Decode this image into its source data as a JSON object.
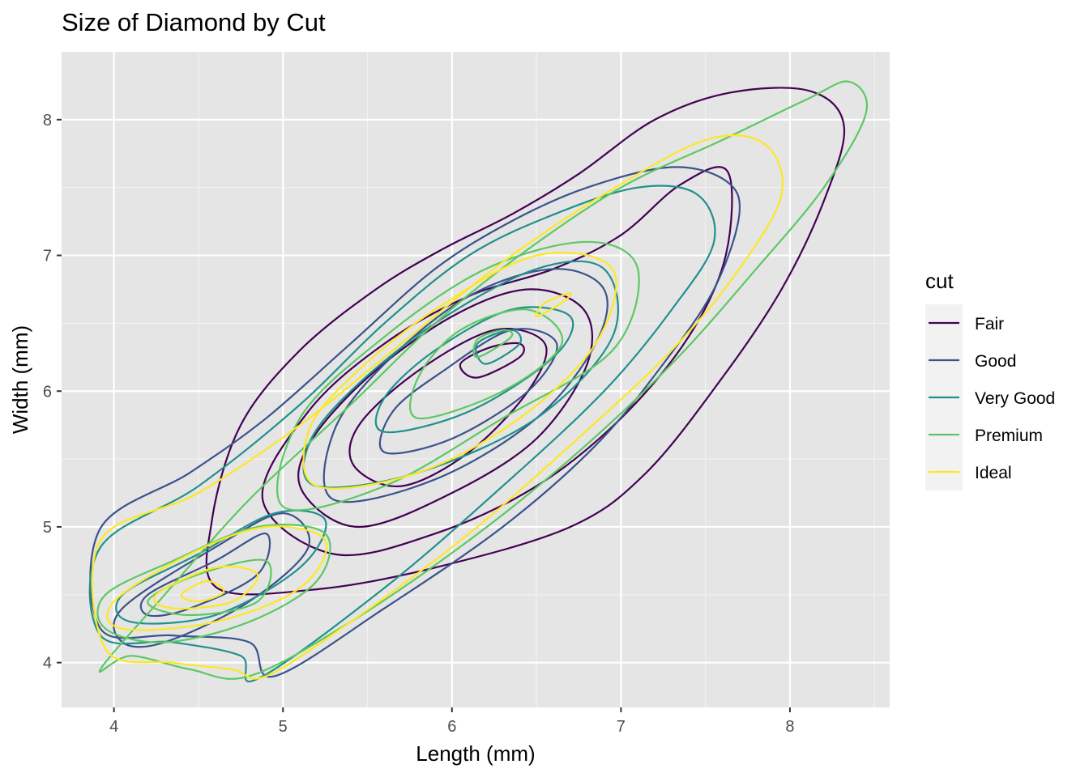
{
  "chart_data": {
    "type": "contour",
    "title": "Size of Diamond by Cut",
    "xlabel": "Length (mm)",
    "ylabel": "Width (mm)",
    "xlim": [
      3.69,
      8.59
    ],
    "ylim": [
      3.67,
      8.5
    ],
    "x_ticks": [
      4,
      5,
      6,
      7,
      8
    ],
    "y_ticks": [
      4,
      5,
      6,
      7,
      8
    ],
    "background": "#e5e5e5",
    "grid": true,
    "legend": {
      "title": "cut",
      "placement": "right"
    },
    "series": [
      {
        "name": "Fair",
        "color": "#440154",
        "contours": [
          [
            [
              4.61,
              4.55
            ],
            [
              5.2,
              4.54
            ],
            [
              5.9,
              4.7
            ],
            [
              6.7,
              5.0
            ],
            [
              7.15,
              5.4
            ],
            [
              7.6,
              6.1
            ],
            [
              7.95,
              6.75
            ],
            [
              8.2,
              7.4
            ],
            [
              8.32,
              7.95
            ],
            [
              8.12,
              8.21
            ],
            [
              7.65,
              8.2
            ],
            [
              7.2,
              8.0
            ],
            [
              6.75,
              7.6
            ],
            [
              6.35,
              7.3
            ],
            [
              5.95,
              7.05
            ],
            [
              5.55,
              6.75
            ],
            [
              5.1,
              6.3
            ],
            [
              4.75,
              5.75
            ],
            [
              4.58,
              5.05
            ]
          ],
          [
            [
              5.3,
              4.8
            ],
            [
              5.9,
              4.95
            ],
            [
              6.5,
              5.3
            ],
            [
              7.0,
              5.8
            ],
            [
              7.4,
              6.4
            ],
            [
              7.62,
              7.0
            ],
            [
              7.63,
              7.62
            ],
            [
              7.35,
              7.52
            ],
            [
              7.0,
              7.15
            ],
            [
              6.6,
              6.9
            ],
            [
              6.1,
              6.7
            ],
            [
              5.6,
              6.35
            ],
            [
              5.15,
              5.85
            ],
            [
              4.88,
              5.2
            ]
          ],
          [
            [
              5.45,
              5.0
            ],
            [
              6.0,
              5.25
            ],
            [
              6.5,
              5.65
            ],
            [
              6.8,
              6.2
            ],
            [
              6.78,
              6.6
            ],
            [
              6.45,
              6.75
            ],
            [
              6.0,
              6.55
            ],
            [
              5.5,
              6.1
            ],
            [
              5.15,
              5.6
            ],
            [
              5.12,
              5.25
            ]
          ],
          [
            [
              5.7,
              5.3
            ],
            [
              6.1,
              5.55
            ],
            [
              6.45,
              6.0
            ],
            [
              6.55,
              6.35
            ],
            [
              6.25,
              6.45
            ],
            [
              5.8,
              6.15
            ],
            [
              5.45,
              5.75
            ],
            [
              5.42,
              5.45
            ]
          ],
          [
            [
              6.15,
              6.1
            ],
            [
              6.4,
              6.25
            ],
            [
              6.4,
              6.35
            ],
            [
              6.22,
              6.32
            ],
            [
              6.05,
              6.2
            ]
          ]
        ]
      },
      {
        "name": "Good",
        "color": "#3b528b",
        "contours": [
          [
            [
              3.92,
              4.99
            ],
            [
              4.45,
              5.4
            ],
            [
              4.9,
              5.8
            ],
            [
              5.4,
              6.35
            ],
            [
              5.9,
              6.9
            ],
            [
              6.35,
              7.25
            ],
            [
              6.8,
              7.5
            ],
            [
              7.3,
              7.65
            ],
            [
              7.62,
              7.55
            ],
            [
              7.7,
              7.3
            ],
            [
              7.55,
              6.75
            ],
            [
              7.25,
              6.2
            ],
            [
              6.85,
              5.6
            ],
            [
              6.3,
              5.0
            ],
            [
              5.6,
              4.4
            ],
            [
              4.95,
              3.9
            ],
            [
              4.8,
              4.15
            ],
            [
              4.35,
              4.2
            ],
            [
              3.92,
              4.25
            ]
          ],
          [
            [
              4.05,
              4.4
            ],
            [
              4.6,
              4.85
            ],
            [
              5.0,
              5.1
            ],
            [
              5.15,
              4.85
            ],
            [
              4.8,
              4.45
            ],
            [
              4.3,
              4.15
            ],
            [
              4.05,
              4.15
            ]
          ],
          [
            [
              4.2,
              4.5
            ],
            [
              4.6,
              4.75
            ],
            [
              4.9,
              4.95
            ],
            [
              4.85,
              4.65
            ],
            [
              4.45,
              4.4
            ],
            [
              4.2,
              4.35
            ]
          ],
          [
            [
              5.3,
              5.2
            ],
            [
              5.9,
              5.35
            ],
            [
              6.5,
              5.8
            ],
            [
              6.85,
              6.35
            ],
            [
              6.9,
              6.75
            ],
            [
              6.6,
              6.9
            ],
            [
              6.1,
              6.7
            ],
            [
              5.6,
              6.2
            ],
            [
              5.3,
              5.7
            ]
          ],
          [
            [
              5.6,
              5.55
            ],
            [
              6.0,
              5.65
            ],
            [
              6.45,
              6.0
            ],
            [
              6.62,
              6.35
            ],
            [
              6.35,
              6.45
            ],
            [
              5.95,
              6.15
            ],
            [
              5.65,
              5.85
            ]
          ]
        ]
      },
      {
        "name": "Very Good",
        "color": "#21908c",
        "contours": [
          [
            [
              3.92,
              4.85
            ],
            [
              4.5,
              5.3
            ],
            [
              5.1,
              5.9
            ],
            [
              5.6,
              6.5
            ],
            [
              6.1,
              7.0
            ],
            [
              6.6,
              7.3
            ],
            [
              7.1,
              7.5
            ],
            [
              7.45,
              7.45
            ],
            [
              7.55,
              7.1
            ],
            [
              7.3,
              6.6
            ],
            [
              6.9,
              6.0
            ],
            [
              6.3,
              5.3
            ],
            [
              5.6,
              4.55
            ],
            [
              4.85,
              3.88
            ],
            [
              4.75,
              4.05
            ],
            [
              4.35,
              4.15
            ],
            [
              3.92,
              4.2
            ]
          ],
          [
            [
              4.05,
              4.5
            ],
            [
              4.5,
              4.8
            ],
            [
              4.95,
              5.1
            ],
            [
              5.25,
              5.05
            ],
            [
              5.1,
              4.7
            ],
            [
              4.6,
              4.35
            ],
            [
              4.1,
              4.3
            ]
          ],
          [
            [
              5.2,
              5.3
            ],
            [
              5.8,
              5.4
            ],
            [
              6.5,
              5.8
            ],
            [
              6.95,
              6.4
            ],
            [
              6.9,
              6.9
            ],
            [
              6.5,
              6.9
            ],
            [
              5.9,
              6.5
            ],
            [
              5.4,
              6.0
            ],
            [
              5.15,
              5.6
            ]
          ],
          [
            [
              5.6,
              5.7
            ],
            [
              6.1,
              5.85
            ],
            [
              6.6,
              6.25
            ],
            [
              6.7,
              6.55
            ],
            [
              6.35,
              6.6
            ],
            [
              5.9,
              6.3
            ],
            [
              5.6,
              5.95
            ]
          ],
          [
            [
              6.2,
              6.2
            ],
            [
              6.4,
              6.35
            ],
            [
              6.35,
              6.45
            ],
            [
              6.15,
              6.35
            ]
          ]
        ]
      },
      {
        "name": "Premium",
        "color": "#5dc863",
        "contours": [
          [
            [
              3.92,
              3.95
            ],
            [
              4.3,
              4.5
            ],
            [
              4.8,
              5.2
            ],
            [
              5.4,
              5.9
            ],
            [
              5.9,
              6.5
            ],
            [
              6.4,
              7.0
            ],
            [
              7.0,
              7.5
            ],
            [
              7.6,
              7.85
            ],
            [
              8.1,
              8.15
            ],
            [
              8.35,
              8.28
            ],
            [
              8.45,
              8.05
            ],
            [
              8.2,
              7.5
            ],
            [
              7.8,
              6.9
            ],
            [
              7.3,
              6.2
            ],
            [
              6.7,
              5.5
            ],
            [
              6.1,
              4.9
            ],
            [
              5.4,
              4.3
            ],
            [
              4.8,
              3.9
            ],
            [
              4.45,
              3.95
            ],
            [
              4.1,
              4.05
            ]
          ],
          [
            [
              3.95,
              4.5
            ],
            [
              4.35,
              4.75
            ],
            [
              4.85,
              5.0
            ],
            [
              5.25,
              4.95
            ],
            [
              5.2,
              4.6
            ],
            [
              4.8,
              4.3
            ],
            [
              4.3,
              4.15
            ],
            [
              3.95,
              4.25
            ]
          ],
          [
            [
              4.2,
              4.45
            ],
            [
              4.5,
              4.65
            ],
            [
              4.9,
              4.75
            ],
            [
              4.85,
              4.45
            ],
            [
              4.45,
              4.35
            ]
          ],
          [
            [
              5.0,
              5.15
            ],
            [
              5.6,
              5.3
            ],
            [
              6.3,
              5.8
            ],
            [
              6.95,
              6.3
            ],
            [
              7.1,
              6.9
            ],
            [
              6.8,
              7.1
            ],
            [
              6.2,
              6.9
            ],
            [
              5.6,
              6.4
            ],
            [
              5.1,
              5.8
            ]
          ],
          [
            [
              5.8,
              5.8
            ],
            [
              6.3,
              6.0
            ],
            [
              6.65,
              6.35
            ],
            [
              6.45,
              6.6
            ],
            [
              6.05,
              6.45
            ],
            [
              5.8,
              6.1
            ]
          ],
          [
            [
              6.15,
              6.25
            ],
            [
              6.35,
              6.4
            ],
            [
              6.3,
              6.45
            ],
            [
              6.15,
              6.38
            ]
          ]
        ]
      },
      {
        "name": "Ideal",
        "color": "#fde725",
        "contours": [
          [
            [
              3.92,
              4.9
            ],
            [
              4.5,
              5.25
            ],
            [
              5.1,
              5.75
            ],
            [
              5.7,
              6.35
            ],
            [
              6.3,
              6.95
            ],
            [
              6.9,
              7.45
            ],
            [
              7.5,
              7.85
            ],
            [
              7.85,
              7.82
            ],
            [
              7.95,
              7.45
            ],
            [
              7.7,
              6.9
            ],
            [
              7.3,
              6.3
            ],
            [
              6.7,
              5.6
            ],
            [
              6.1,
              4.95
            ],
            [
              5.4,
              4.3
            ],
            [
              4.9,
              3.9
            ],
            [
              4.7,
              3.95
            ],
            [
              4.35,
              4.0
            ],
            [
              3.95,
              4.1
            ]
          ],
          [
            [
              4.0,
              4.45
            ],
            [
              4.45,
              4.8
            ],
            [
              4.9,
              5.0
            ],
            [
              5.25,
              4.9
            ],
            [
              5.1,
              4.55
            ],
            [
              4.6,
              4.3
            ],
            [
              4.05,
              4.25
            ]
          ],
          [
            [
              4.25,
              4.5
            ],
            [
              4.6,
              4.7
            ],
            [
              4.85,
              4.65
            ],
            [
              4.7,
              4.45
            ],
            [
              4.35,
              4.4
            ]
          ],
          [
            [
              4.4,
              4.5
            ],
            [
              4.55,
              4.6
            ],
            [
              4.65,
              4.52
            ],
            [
              4.5,
              4.45
            ]
          ],
          [
            [
              5.2,
              5.3
            ],
            [
              5.8,
              5.4
            ],
            [
              6.4,
              5.8
            ],
            [
              6.85,
              6.35
            ],
            [
              6.95,
              6.9
            ],
            [
              6.5,
              7.0
            ],
            [
              5.9,
              6.6
            ],
            [
              5.4,
              6.1
            ],
            [
              5.15,
              5.7
            ]
          ],
          [
            [
              6.5,
              6.55
            ],
            [
              6.65,
              6.65
            ],
            [
              6.7,
              6.72
            ],
            [
              6.55,
              6.65
            ]
          ]
        ]
      }
    ]
  }
}
